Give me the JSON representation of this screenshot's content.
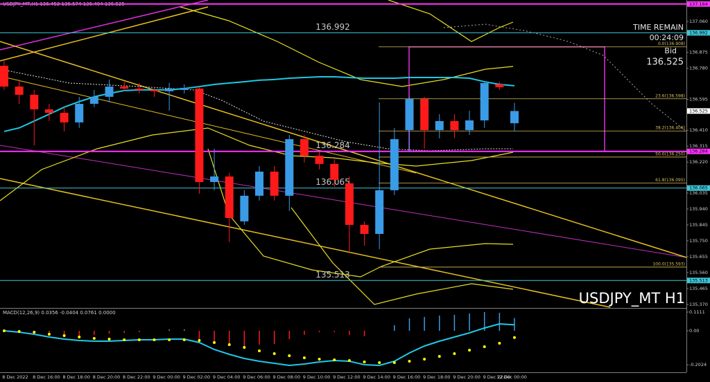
{
  "chart_data": {
    "type": "candlestick",
    "header": "USDJPY_MT,H1 136.452 136.574 136.404 136.525",
    "symbol_label": "USDJPY_MT H1",
    "categories": [
      "8 Dec 2022",
      null,
      null,
      "8 Dec 16:00",
      null,
      "8 Dec 18:00",
      null,
      "8 Dec 20:00",
      null,
      "8 Dec 22:00",
      null,
      "9 Dec 00:00",
      null,
      "9 Dec 02:00",
      null,
      "9 Dec 04:00",
      null,
      "9 Dec 06:00",
      null,
      "9 Dec 08:00",
      null,
      "9 Dec 10:00",
      null,
      "9 Dec 12:00",
      null,
      "9 Dec 14:00",
      null,
      "9 Dec 16:00",
      null,
      "9 Dec 18:00",
      null,
      "9 Dec 20:00",
      null,
      "9 Dec 22:00",
      "12 Dec 00:00"
    ],
    "open": [
      136.795,
      136.671,
      136.622,
      136.535,
      136.514,
      136.457,
      136.568,
      136.61,
      136.671,
      136.659,
      136.651,
      136.643,
      136.651,
      136.659,
      136.101,
      136.134,
      135.866,
      136.019,
      136.163,
      136.019,
      136.357,
      136.258,
      136.209,
      136.093,
      135.845,
      135.791,
      136.052,
      136.411,
      136.597,
      136.411,
      136.465,
      136.411,
      136.469,
      136.684,
      136.452
    ],
    "high": [
      136.824,
      136.713,
      136.651,
      136.568,
      136.548,
      136.61,
      136.651,
      136.713,
      136.7,
      136.692,
      136.671,
      136.692,
      136.684,
      136.671,
      136.3,
      136.155,
      136.052,
      136.196,
      136.196,
      136.382,
      136.382,
      136.279,
      136.238,
      136.134,
      135.866,
      136.576,
      136.424,
      136.61,
      136.61,
      136.506,
      136.506,
      136.527,
      136.7,
      136.7,
      136.574
    ],
    "low": [
      136.651,
      136.568,
      136.32,
      136.465,
      136.403,
      136.424,
      136.548,
      136.576,
      136.643,
      136.63,
      136.61,
      136.527,
      136.63,
      136.031,
      136.052,
      135.742,
      135.845,
      135.99,
      135.99,
      135.928,
      136.217,
      136.176,
      136.072,
      135.68,
      135.721,
      135.7,
      136.023,
      136.279,
      136.3,
      136.362,
      136.362,
      136.382,
      136.424,
      136.651,
      136.404
    ],
    "close": [
      136.671,
      136.622,
      136.535,
      136.514,
      136.457,
      136.568,
      136.61,
      136.671,
      136.659,
      136.651,
      136.643,
      136.659,
      136.663,
      136.101,
      136.134,
      135.886,
      136.019,
      136.163,
      136.019,
      136.357,
      136.258,
      136.209,
      136.114,
      135.845,
      135.791,
      136.052,
      136.357,
      136.597,
      136.411,
      136.465,
      136.411,
      136.469,
      136.692,
      136.667,
      136.525
    ],
    "up_color": "#3a9be6",
    "down_color": "#ff1a1a",
    "ma_values": [
      136.403,
      136.424,
      136.465,
      136.506,
      136.548,
      136.581,
      136.61,
      136.63,
      136.647,
      136.651,
      136.651,
      136.651,
      136.659,
      136.671,
      136.684,
      136.692,
      136.7,
      136.709,
      136.713,
      136.721,
      136.725,
      136.729,
      136.729,
      136.725,
      136.721,
      136.721,
      136.721,
      136.725,
      136.725,
      136.725,
      136.725,
      136.721,
      136.7,
      136.684,
      136.676
    ],
    "ma_color": "#1ec8e6",
    "ylim": [
      135.353,
      137.188
    ],
    "yticks": [
      {
        "value": 137.06,
        "label": "137.060"
      },
      136.875,
      {
        "value": 136.78,
        "label": "136.780"
      },
      136.595,
      {
        "value": 136.41,
        "label": "136.410"
      },
      136.315,
      {
        "value": 136.22,
        "label": "136.220"
      },
      136.035,
      {
        "value": 135.94,
        "label": "135.940"
      },
      135.845,
      {
        "value": 135.75,
        "label": "135.750"
      },
      135.655,
      {
        "value": 135.56,
        "label": "135.560"
      },
      135.465,
      {
        "value": 135.37,
        "label": "135.370"
      }
    ],
    "hlines": [
      {
        "value": 137.164,
        "color": "#ff33ff",
        "inline_label": false
      },
      {
        "value": 136.992,
        "color": "#3fc8d8",
        "inline_label": true
      },
      {
        "value": 136.284,
        "color": "#ff33ff",
        "inline_label": true
      },
      {
        "value": 136.065,
        "color": "#3fc8d8",
        "inline_label": true
      },
      {
        "value": 135.513,
        "color": "#3fc8d8",
        "inline_label": true
      }
    ],
    "fib_color": "#d8c060",
    "fib_box_color": "#e030e0",
    "fib_levels": [
      {
        "label": "0.0(136.908)",
        "price": 136.908
      },
      {
        "label": "23.6(136.598)",
        "price": 136.598
      },
      {
        "label": "38.2(136.406)",
        "price": 136.406
      },
      {
        "label": "50.0(136.250)",
        "price": 136.25
      },
      {
        "label": "61.8(136.095)",
        "price": 136.095
      },
      {
        "label": "100.0(135.593)",
        "price": 135.593
      }
    ],
    "time_remain_label": "TIME REMAIN",
    "time_remain": "00:24:09",
    "bid_label": "Bid",
    "bid": 136.525,
    "macd": {
      "label": "MACD(12,26,9) 0.0356 -0.0404 0.0761 0.0000",
      "ylim": [
        -0.243,
        0.1276
      ],
      "yticks": [
        0.1111,
        {
          "value": 0,
          "label": "0.00"
        },
        -0.2024
      ],
      "main_color": "#22c8e8",
      "signal_color": "#ffff00",
      "main": [
        0,
        -0.0082,
        -0.0206,
        -0.0371,
        -0.0494,
        -0.0577,
        -0.0618,
        -0.0618,
        -0.0577,
        -0.0536,
        -0.0536,
        -0.0494,
        -0.0494,
        -0.07,
        -0.1112,
        -0.1401,
        -0.1648,
        -0.1813,
        -0.1936,
        -0.206,
        -0.1978,
        -0.1854,
        -0.1772,
        -0.1813,
        -0.2019,
        -0.206,
        -0.1813,
        -0.1318,
        -0.0906,
        -0.0618,
        -0.0371,
        -0.0124,
        0.0165,
        0.0412,
        0.0356
      ],
      "signal": [
        0,
        -0.0041,
        -0.0082,
        -0.0206,
        -0.0288,
        -0.0371,
        -0.0453,
        -0.0494,
        -0.0536,
        -0.0536,
        -0.0536,
        -0.0536,
        -0.0536,
        -0.0577,
        -0.07,
        -0.0824,
        -0.0989,
        -0.1195,
        -0.136,
        -0.1483,
        -0.1607,
        -0.1689,
        -0.173,
        -0.1772,
        -0.1854,
        -0.1895,
        -0.1895,
        -0.1813,
        -0.1689,
        -0.1524,
        -0.136,
        -0.1154,
        -0.0948,
        -0.0742,
        -0.0404
      ],
      "hist": [
        0,
        -0.0082,
        -0.0165,
        -0.0288,
        -0.0371,
        -0.033,
        -0.0247,
        -0.0165,
        -0.0124,
        -0.0082,
        0,
        0.0082,
        0.0082,
        -0.0494,
        -0.0742,
        -0.0906,
        -0.0906,
        -0.0824,
        -0.0783,
        -0.0494,
        -0.0247,
        -0.0082,
        -0.0082,
        -0.0247,
        -0.033,
        0,
        0.033,
        0.0742,
        0.0824,
        0.0906,
        0.0948,
        0.103,
        0.1112,
        0.1071,
        0.0761
      ]
    }
  }
}
